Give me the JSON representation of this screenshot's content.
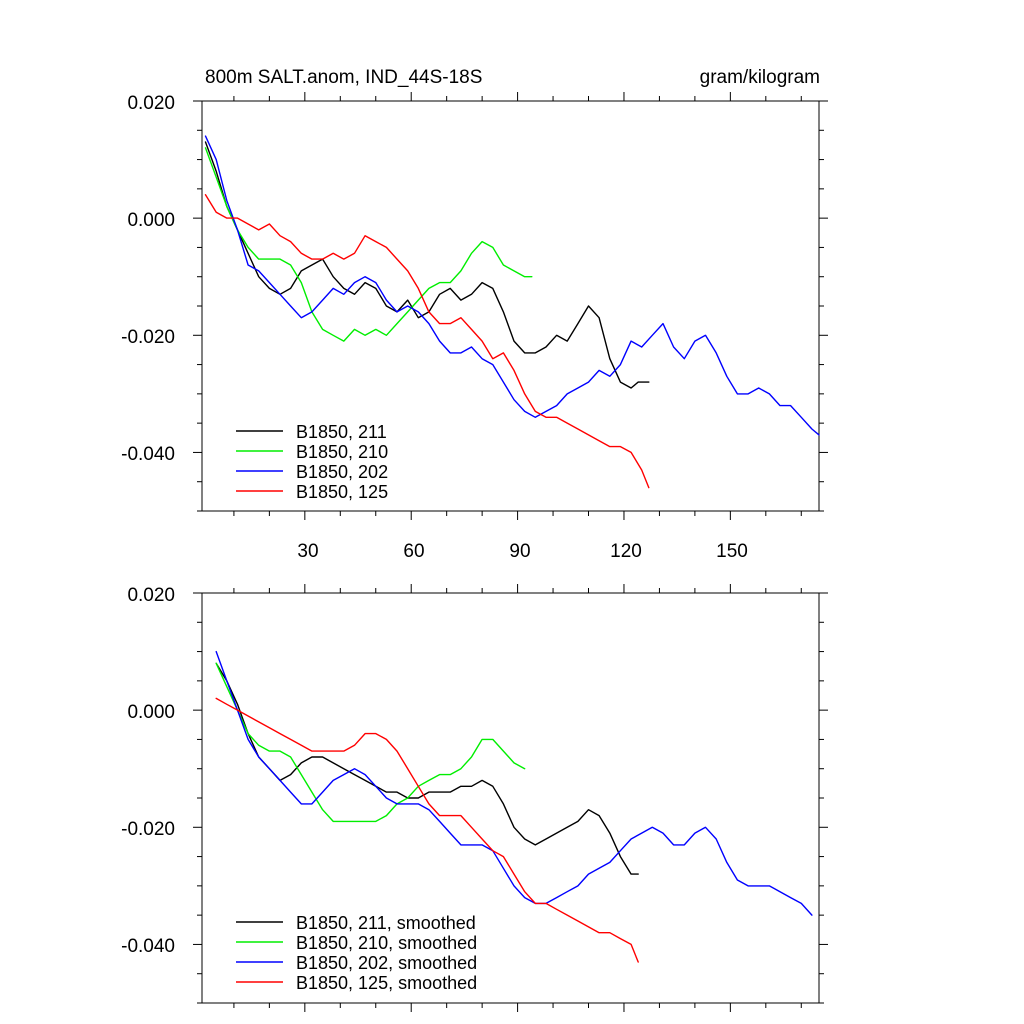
{
  "chart_data": [
    {
      "type": "line",
      "title": "800m SALT.anom, IND_44S-18S",
      "units": "gram/kilogram",
      "xlabel": "",
      "ylabel": "",
      "xlim": [
        1,
        175
      ],
      "ylim": [
        -0.05,
        0.02
      ],
      "xticks": [
        30,
        60,
        90,
        120,
        150
      ],
      "xtick_labels": [
        "30",
        "60",
        "90",
        "120",
        "150"
      ],
      "yticks": [
        0.02,
        0.0,
        -0.02,
        -0.04
      ],
      "ytick_labels": [
        "0.020",
        "0.000",
        "-0.020",
        "-0.040"
      ],
      "grid": false,
      "legend": "bottom-left",
      "series": [
        {
          "name": "B1850, 211",
          "color": "#000000",
          "x": [
            2,
            5,
            8,
            11,
            14,
            17,
            20,
            23,
            26,
            29,
            32,
            35,
            38,
            41,
            44,
            47,
            50,
            53,
            56,
            59,
            62,
            65,
            68,
            71,
            74,
            77,
            80,
            83,
            86,
            89,
            92,
            95,
            98,
            101,
            104,
            107,
            110,
            113,
            116,
            119,
            122,
            124,
            127
          ],
          "y": [
            0.013,
            0.008,
            0.002,
            -0.002,
            -0.006,
            -0.01,
            -0.012,
            -0.013,
            -0.012,
            -0.009,
            -0.008,
            -0.007,
            -0.01,
            -0.012,
            -0.013,
            -0.011,
            -0.012,
            -0.015,
            -0.016,
            -0.014,
            -0.017,
            -0.016,
            -0.013,
            -0.012,
            -0.014,
            -0.013,
            -0.011,
            -0.012,
            -0.016,
            -0.021,
            -0.023,
            -0.023,
            -0.022,
            -0.02,
            -0.021,
            -0.018,
            -0.015,
            -0.017,
            -0.024,
            -0.028,
            -0.029,
            -0.028,
            -0.028
          ]
        },
        {
          "name": "B1850, 210",
          "color": "#00ee00",
          "x": [
            2,
            5,
            8,
            11,
            14,
            17,
            20,
            23,
            26,
            29,
            32,
            35,
            38,
            41,
            44,
            47,
            50,
            53,
            56,
            59,
            62,
            65,
            68,
            71,
            74,
            77,
            80,
            83,
            86,
            89,
            92,
            94
          ],
          "y": [
            0.012,
            0.007,
            0.002,
            -0.002,
            -0.005,
            -0.007,
            -0.007,
            -0.007,
            -0.008,
            -0.011,
            -0.016,
            -0.019,
            -0.02,
            -0.021,
            -0.019,
            -0.02,
            -0.019,
            -0.02,
            -0.018,
            -0.016,
            -0.014,
            -0.012,
            -0.011,
            -0.011,
            -0.009,
            -0.006,
            -0.004,
            -0.005,
            -0.008,
            -0.009,
            -0.01,
            -0.01
          ]
        },
        {
          "name": "B1850, 202",
          "color": "#0000ff",
          "x": [
            2,
            5,
            8,
            11,
            14,
            17,
            20,
            23,
            26,
            29,
            32,
            35,
            38,
            41,
            44,
            47,
            50,
            53,
            56,
            59,
            62,
            65,
            68,
            71,
            74,
            77,
            80,
            83,
            86,
            89,
            92,
            95,
            98,
            101,
            104,
            107,
            110,
            113,
            116,
            119,
            122,
            125,
            128,
            131,
            134,
            137,
            140,
            143,
            146,
            149,
            152,
            155,
            158,
            161,
            164,
            167,
            170,
            173,
            175
          ],
          "y": [
            0.014,
            0.01,
            0.003,
            -0.002,
            -0.008,
            -0.009,
            -0.011,
            -0.013,
            -0.015,
            -0.017,
            -0.016,
            -0.014,
            -0.012,
            -0.013,
            -0.011,
            -0.01,
            -0.011,
            -0.014,
            -0.016,
            -0.015,
            -0.016,
            -0.018,
            -0.021,
            -0.023,
            -0.023,
            -0.022,
            -0.024,
            -0.025,
            -0.028,
            -0.031,
            -0.033,
            -0.034,
            -0.033,
            -0.032,
            -0.03,
            -0.029,
            -0.028,
            -0.026,
            -0.027,
            -0.025,
            -0.021,
            -0.022,
            -0.02,
            -0.018,
            -0.022,
            -0.024,
            -0.021,
            -0.02,
            -0.023,
            -0.027,
            -0.03,
            -0.03,
            -0.029,
            -0.03,
            -0.032,
            -0.032,
            -0.034,
            -0.036,
            -0.037
          ]
        },
        {
          "name": "B1850, 125",
          "color": "#ff0000",
          "x": [
            2,
            5,
            8,
            11,
            14,
            17,
            20,
            23,
            26,
            29,
            32,
            35,
            38,
            41,
            44,
            47,
            50,
            53,
            56,
            59,
            62,
            65,
            68,
            71,
            74,
            77,
            80,
            83,
            86,
            89,
            92,
            95,
            98,
            101,
            104,
            107,
            110,
            113,
            116,
            119,
            122,
            125,
            127
          ],
          "y": [
            0.004,
            0.001,
            0.0,
            0.0,
            -0.001,
            -0.002,
            -0.001,
            -0.003,
            -0.004,
            -0.006,
            -0.007,
            -0.007,
            -0.006,
            -0.007,
            -0.006,
            -0.003,
            -0.004,
            -0.005,
            -0.007,
            -0.009,
            -0.012,
            -0.016,
            -0.018,
            -0.018,
            -0.017,
            -0.019,
            -0.021,
            -0.024,
            -0.023,
            -0.026,
            -0.03,
            -0.033,
            -0.034,
            -0.034,
            -0.035,
            -0.036,
            -0.037,
            -0.038,
            -0.039,
            -0.039,
            -0.04,
            -0.043,
            -0.046
          ]
        }
      ]
    },
    {
      "type": "line",
      "title": "",
      "units": "",
      "xlabel": "",
      "ylabel": "",
      "xlim": [
        1,
        175
      ],
      "ylim": [
        -0.05,
        0.02
      ],
      "xticks": [
        30,
        60,
        90,
        120,
        150
      ],
      "xtick_labels": [],
      "yticks": [
        0.02,
        0.0,
        -0.02,
        -0.04
      ],
      "ytick_labels": [
        "0.020",
        "0.000",
        "-0.020",
        "-0.040"
      ],
      "grid": false,
      "legend": "bottom-left",
      "series": [
        {
          "name": "B1850, 211, smoothed",
          "color": "#000000",
          "x": [
            5,
            8,
            11,
            14,
            17,
            20,
            23,
            26,
            29,
            32,
            35,
            38,
            41,
            44,
            47,
            50,
            53,
            56,
            59,
            62,
            65,
            68,
            71,
            74,
            77,
            80,
            83,
            86,
            89,
            92,
            95,
            98,
            101,
            104,
            107,
            110,
            113,
            116,
            119,
            122,
            124
          ],
          "y": [
            0.008,
            0.005,
            0.001,
            -0.004,
            -0.008,
            -0.01,
            -0.012,
            -0.011,
            -0.009,
            -0.008,
            -0.008,
            -0.009,
            -0.01,
            -0.011,
            -0.012,
            -0.013,
            -0.014,
            -0.014,
            -0.015,
            -0.015,
            -0.014,
            -0.014,
            -0.014,
            -0.013,
            -0.013,
            -0.012,
            -0.013,
            -0.016,
            -0.02,
            -0.022,
            -0.023,
            -0.022,
            -0.021,
            -0.02,
            -0.019,
            -0.017,
            -0.018,
            -0.021,
            -0.025,
            -0.028,
            -0.028
          ]
        },
        {
          "name": "B1850, 210, smoothed",
          "color": "#00ee00",
          "x": [
            5,
            8,
            11,
            14,
            17,
            20,
            23,
            26,
            29,
            32,
            35,
            38,
            41,
            44,
            47,
            50,
            53,
            56,
            59,
            62,
            65,
            68,
            71,
            74,
            77,
            80,
            83,
            86,
            89,
            92
          ],
          "y": [
            0.008,
            0.004,
            0.0,
            -0.004,
            -0.006,
            -0.007,
            -0.007,
            -0.008,
            -0.011,
            -0.014,
            -0.017,
            -0.019,
            -0.019,
            -0.019,
            -0.019,
            -0.019,
            -0.018,
            -0.016,
            -0.015,
            -0.013,
            -0.012,
            -0.011,
            -0.011,
            -0.01,
            -0.008,
            -0.005,
            -0.005,
            -0.007,
            -0.009,
            -0.01
          ]
        },
        {
          "name": "B1850, 202, smoothed",
          "color": "#0000ff",
          "x": [
            5,
            8,
            11,
            14,
            17,
            20,
            23,
            26,
            29,
            32,
            35,
            38,
            41,
            44,
            47,
            50,
            53,
            56,
            59,
            62,
            65,
            68,
            71,
            74,
            77,
            80,
            83,
            86,
            89,
            92,
            95,
            98,
            101,
            104,
            107,
            110,
            113,
            116,
            119,
            122,
            125,
            128,
            131,
            134,
            137,
            140,
            143,
            146,
            149,
            152,
            155,
            158,
            161,
            164,
            167,
            170,
            173
          ],
          "y": [
            0.01,
            0.005,
            0.0,
            -0.005,
            -0.008,
            -0.01,
            -0.012,
            -0.014,
            -0.016,
            -0.016,
            -0.014,
            -0.012,
            -0.011,
            -0.01,
            -0.011,
            -0.013,
            -0.015,
            -0.016,
            -0.016,
            -0.016,
            -0.017,
            -0.019,
            -0.021,
            -0.023,
            -0.023,
            -0.023,
            -0.024,
            -0.027,
            -0.03,
            -0.032,
            -0.033,
            -0.033,
            -0.032,
            -0.031,
            -0.03,
            -0.028,
            -0.027,
            -0.026,
            -0.024,
            -0.022,
            -0.021,
            -0.02,
            -0.021,
            -0.023,
            -0.023,
            -0.021,
            -0.02,
            -0.022,
            -0.026,
            -0.029,
            -0.03,
            -0.03,
            -0.03,
            -0.031,
            -0.032,
            -0.033,
            -0.035
          ]
        },
        {
          "name": "B1850, 125, smoothed",
          "color": "#ff0000",
          "x": [
            5,
            8,
            11,
            14,
            17,
            20,
            23,
            26,
            29,
            32,
            35,
            38,
            41,
            44,
            47,
            50,
            53,
            56,
            59,
            62,
            65,
            68,
            71,
            74,
            77,
            80,
            83,
            86,
            89,
            92,
            95,
            98,
            101,
            104,
            107,
            110,
            113,
            116,
            119,
            122,
            124
          ],
          "y": [
            0.002,
            0.001,
            0.0,
            -0.001,
            -0.002,
            -0.003,
            -0.004,
            -0.005,
            -0.006,
            -0.007,
            -0.007,
            -0.007,
            -0.007,
            -0.006,
            -0.004,
            -0.004,
            -0.005,
            -0.007,
            -0.01,
            -0.013,
            -0.016,
            -0.018,
            -0.018,
            -0.018,
            -0.02,
            -0.022,
            -0.024,
            -0.025,
            -0.028,
            -0.031,
            -0.033,
            -0.033,
            -0.034,
            -0.035,
            -0.036,
            -0.037,
            -0.038,
            -0.038,
            -0.039,
            -0.04,
            -0.043
          ]
        }
      ]
    }
  ]
}
